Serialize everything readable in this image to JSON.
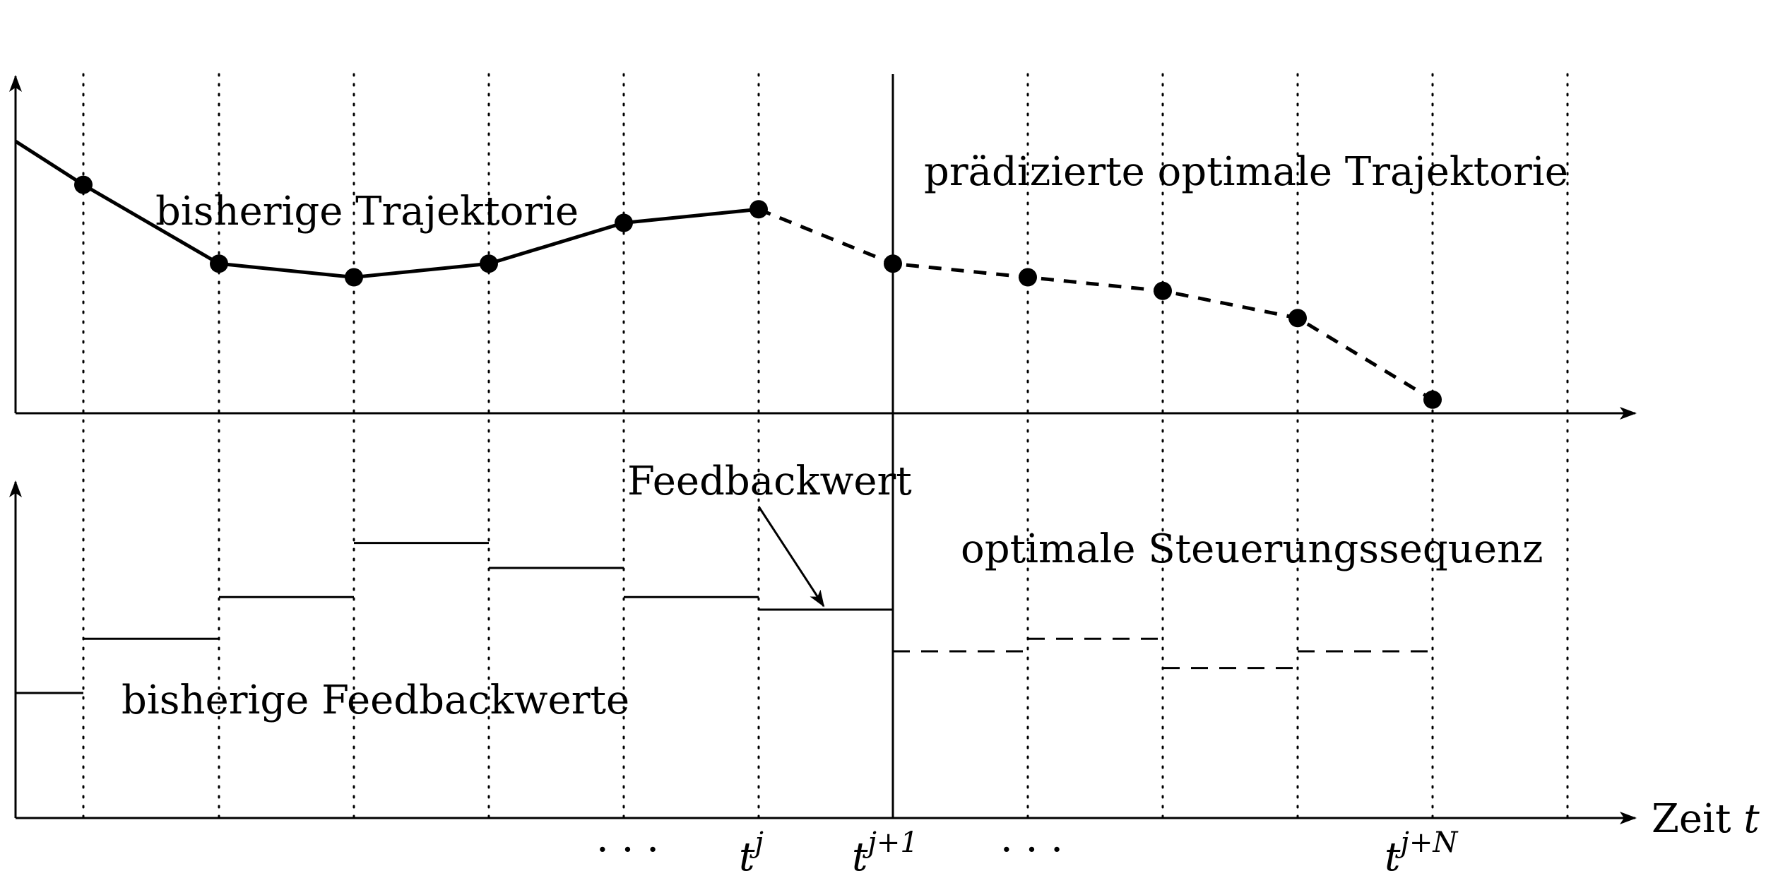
{
  "labels": {
    "history_trajectory": "bisherige Trajektorie",
    "predicted_trajectory": "prädizierte optimale Trajektorie",
    "feedback_value": "Feedbackwert",
    "optimal_control": "optimale Steuerungssequenz",
    "history_feedback": "bisherige Feedbackwerte",
    "time_axis": "Zeit",
    "time_var": "t"
  },
  "ticks": {
    "dots_left": "· · ·",
    "dots_right": "· · ·",
    "tj_base": "t",
    "tj_sup": "j",
    "tj1_base": "t",
    "tj1_sup": "j+1",
    "tjN_base": "t",
    "tjN_sup": "j+N"
  },
  "trajectory": {
    "past_values": [
      0.84,
      0.55,
      0.5,
      0.55,
      0.7,
      0.75
    ],
    "predicted_values": [
      0.75,
      0.55,
      0.5,
      0.45,
      0.35,
      0.05
    ],
    "start_value": 1.0
  },
  "controls": {
    "past_values": [
      0.3,
      0.43,
      0.53,
      0.66,
      0.6,
      0.53,
      0.5
    ],
    "predicted_values": [
      0.4,
      0.43,
      0.36,
      0.4
    ]
  }
}
